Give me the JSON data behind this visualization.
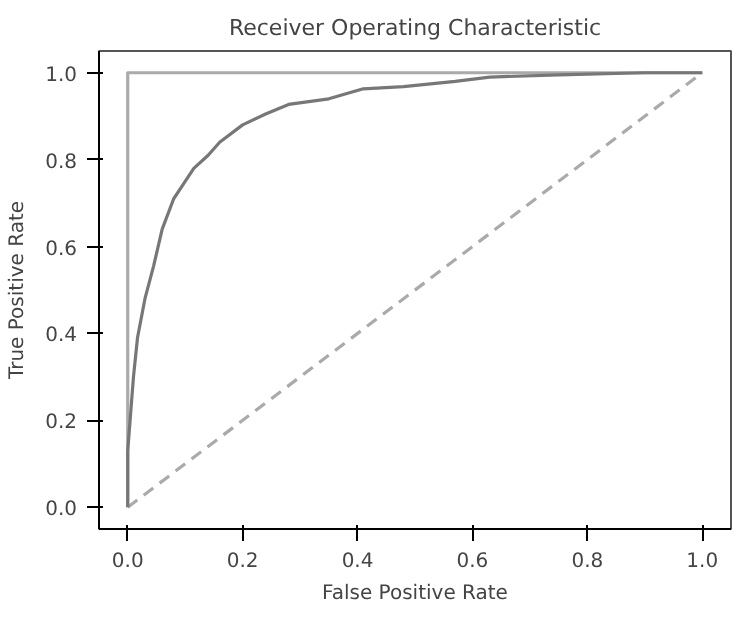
{
  "chart_data": {
    "type": "line",
    "title": "Receiver Operating Characteristic",
    "xlabel": "False Positive Rate",
    "ylabel": "True Positive Rate",
    "xlim": [
      -0.05,
      1.05
    ],
    "ylim": [
      -0.05,
      1.05
    ],
    "xticks": [
      {
        "value": 0,
        "label": "0.0"
      },
      {
        "value": 0.2,
        "label": "0.2"
      },
      {
        "value": 0.4,
        "label": "0.4"
      },
      {
        "value": 0.6,
        "label": "0.6"
      },
      {
        "value": 0.8,
        "label": "0.8"
      },
      {
        "value": 1,
        "label": "1.0"
      }
    ],
    "yticks": [
      {
        "value": 0,
        "label": "0.0"
      },
      {
        "value": 0.2,
        "label": "0.2"
      },
      {
        "value": 0.4,
        "label": "0.4"
      },
      {
        "value": 0.6,
        "label": "0.6"
      },
      {
        "value": 0.8,
        "label": "0.8"
      },
      {
        "value": 1,
        "label": "1.0"
      }
    ],
    "grid": false,
    "series": [
      {
        "color": "#aaaaaa",
        "line_style": "solid",
        "x": [
          0,
          0,
          1
        ],
        "values": [
          0,
          1,
          1
        ]
      },
      {
        "color": "#aaaaaa",
        "line_style": "dashed",
        "x": [
          0,
          1
        ],
        "values": [
          0,
          1
        ]
      },
      {
        "color": "#777777",
        "line_style": "solid",
        "x": [
          0,
          0,
          0.01,
          0.017,
          0.03,
          0.045,
          0.06,
          0.08,
          0.1,
          0.115,
          0.14,
          0.16,
          0.2,
          0.24,
          0.28,
          0.35,
          0.41,
          0.48,
          0.51,
          0.57,
          0.63,
          0.75,
          0.9,
          1
        ],
        "values": [
          0,
          0.13,
          0.3,
          0.39,
          0.48,
          0.555,
          0.64,
          0.71,
          0.75,
          0.78,
          0.81,
          0.84,
          0.88,
          0.905,
          0.927,
          0.94,
          0.963,
          0.968,
          0.972,
          0.98,
          0.99,
          0.995,
          1,
          1
        ]
      }
    ]
  }
}
